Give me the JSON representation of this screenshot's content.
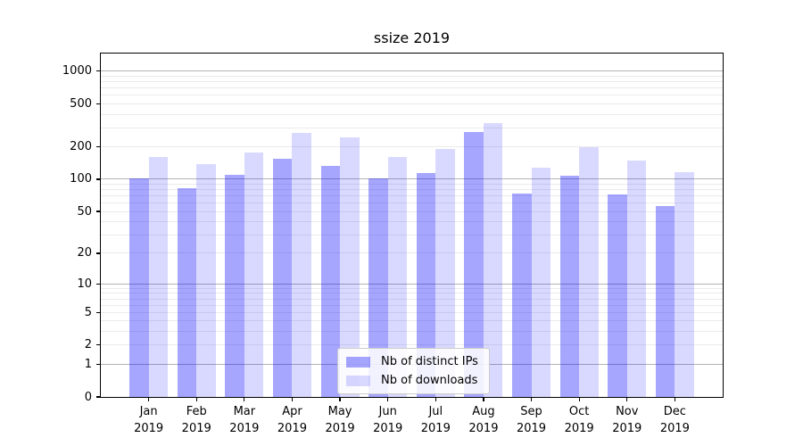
{
  "chart_data": {
    "type": "bar",
    "title": "ssize 2019",
    "x_labels": [
      "Jan 2019",
      "Feb 2019",
      "Mar 2019",
      "Apr 2019",
      "May 2019",
      "Jun 2019",
      "Jul 2019",
      "Aug 2019",
      "Sep 2019",
      "Oct 2019",
      "Nov 2019",
      "Dec 2019"
    ],
    "series": [
      {
        "name": "Nb of distinct IPs",
        "color": "#0000ff",
        "alpha": 0.35,
        "values": [
          102,
          83,
          109,
          154,
          133,
          102,
          114,
          272,
          73,
          108,
          72,
          56
        ]
      },
      {
        "name": "Nb of downloads",
        "color": "#0000ff",
        "alpha": 0.15,
        "values": [
          161,
          139,
          178,
          267,
          246,
          161,
          191,
          329,
          128,
          197,
          148,
          116
        ]
      }
    ],
    "xlabel": "",
    "ylabel": "",
    "yscale": "log1p",
    "y_ticks": [
      0,
      1,
      2,
      5,
      10,
      20,
      50,
      100,
      200,
      500,
      1000
    ],
    "ylim": [
      0,
      1450
    ],
    "major_grid_values": [
      1,
      10,
      100,
      1000
    ],
    "grid": "horizontal",
    "legend_position": "lower center",
    "bar_width_fraction": 0.4,
    "colors": {
      "axis": "#000000",
      "major_grid": "#b4b4b4",
      "minor_grid": "#ebebeb",
      "text": "#000000",
      "legend_border": "#cccccc"
    }
  }
}
